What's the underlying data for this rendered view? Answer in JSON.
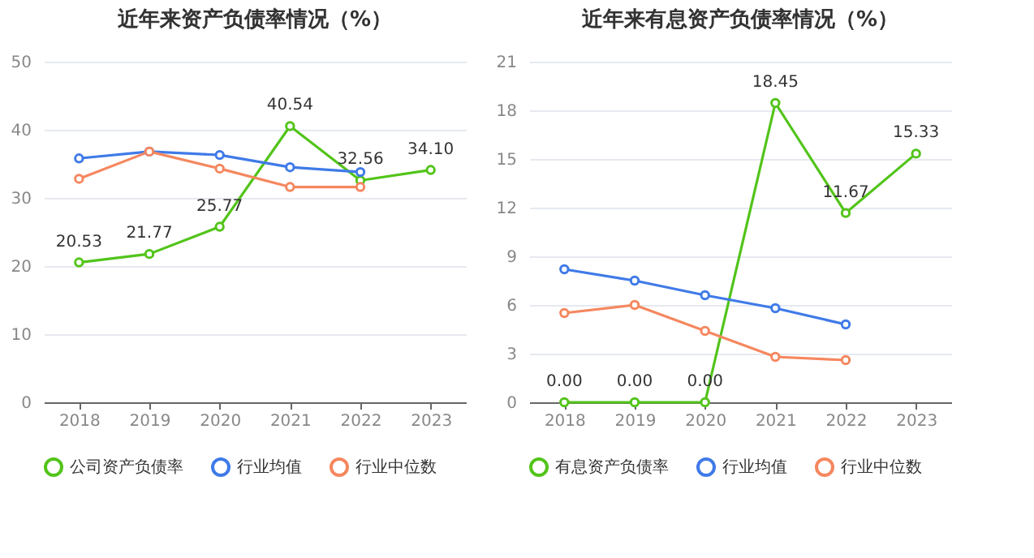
{
  "chart_data": [
    {
      "type": "line",
      "title": "近年来资产负债率情况（%）",
      "categories": [
        "2018",
        "2019",
        "2020",
        "2021",
        "2022",
        "2023"
      ],
      "series": [
        {
          "name": "公司资产负债率",
          "color": "#52c41a",
          "values": [
            20.53,
            21.77,
            25.77,
            40.54,
            32.56,
            34.1
          ],
          "value_labels": [
            "20.53",
            "21.77",
            "25.77",
            "40.54",
            "32.56",
            "34.10"
          ]
        },
        {
          "name": "行业均值",
          "color": "#3f7ae8",
          "values": [
            35.8,
            36.8,
            36.3,
            34.5,
            33.8,
            null
          ]
        },
        {
          "name": "行业中位数",
          "color": "#f5875f",
          "values": [
            32.8,
            36.8,
            34.3,
            31.6,
            31.6,
            null
          ]
        }
      ],
      "ylim": [
        0,
        50
      ],
      "yticks": [
        0,
        10,
        20,
        30,
        40,
        50
      ],
      "grid": "y",
      "legend": "bottom",
      "marker": "circle"
    },
    {
      "type": "line",
      "title": "近年来有息资产负债率情况（%）",
      "categories": [
        "2018",
        "2019",
        "2020",
        "2021",
        "2022",
        "2023"
      ],
      "series": [
        {
          "name": "有息资产负债率",
          "color": "#52c41a",
          "values": [
            0.0,
            0.0,
            0.0,
            18.45,
            11.67,
            15.33
          ],
          "value_labels": [
            "0.00",
            "0.00",
            "0.00",
            "18.45",
            "11.67",
            "15.33"
          ]
        },
        {
          "name": "行业均值",
          "color": "#3f7ae8",
          "values": [
            8.2,
            7.5,
            6.6,
            5.8,
            4.8,
            null
          ]
        },
        {
          "name": "行业中位数",
          "color": "#f5875f",
          "values": [
            5.5,
            6.0,
            4.4,
            2.8,
            2.6,
            null
          ]
        }
      ],
      "ylim": [
        0,
        21
      ],
      "yticks": [
        0,
        3,
        6,
        9,
        12,
        15,
        18,
        21
      ],
      "grid": "y",
      "legend": "bottom",
      "marker": "circle"
    }
  ]
}
